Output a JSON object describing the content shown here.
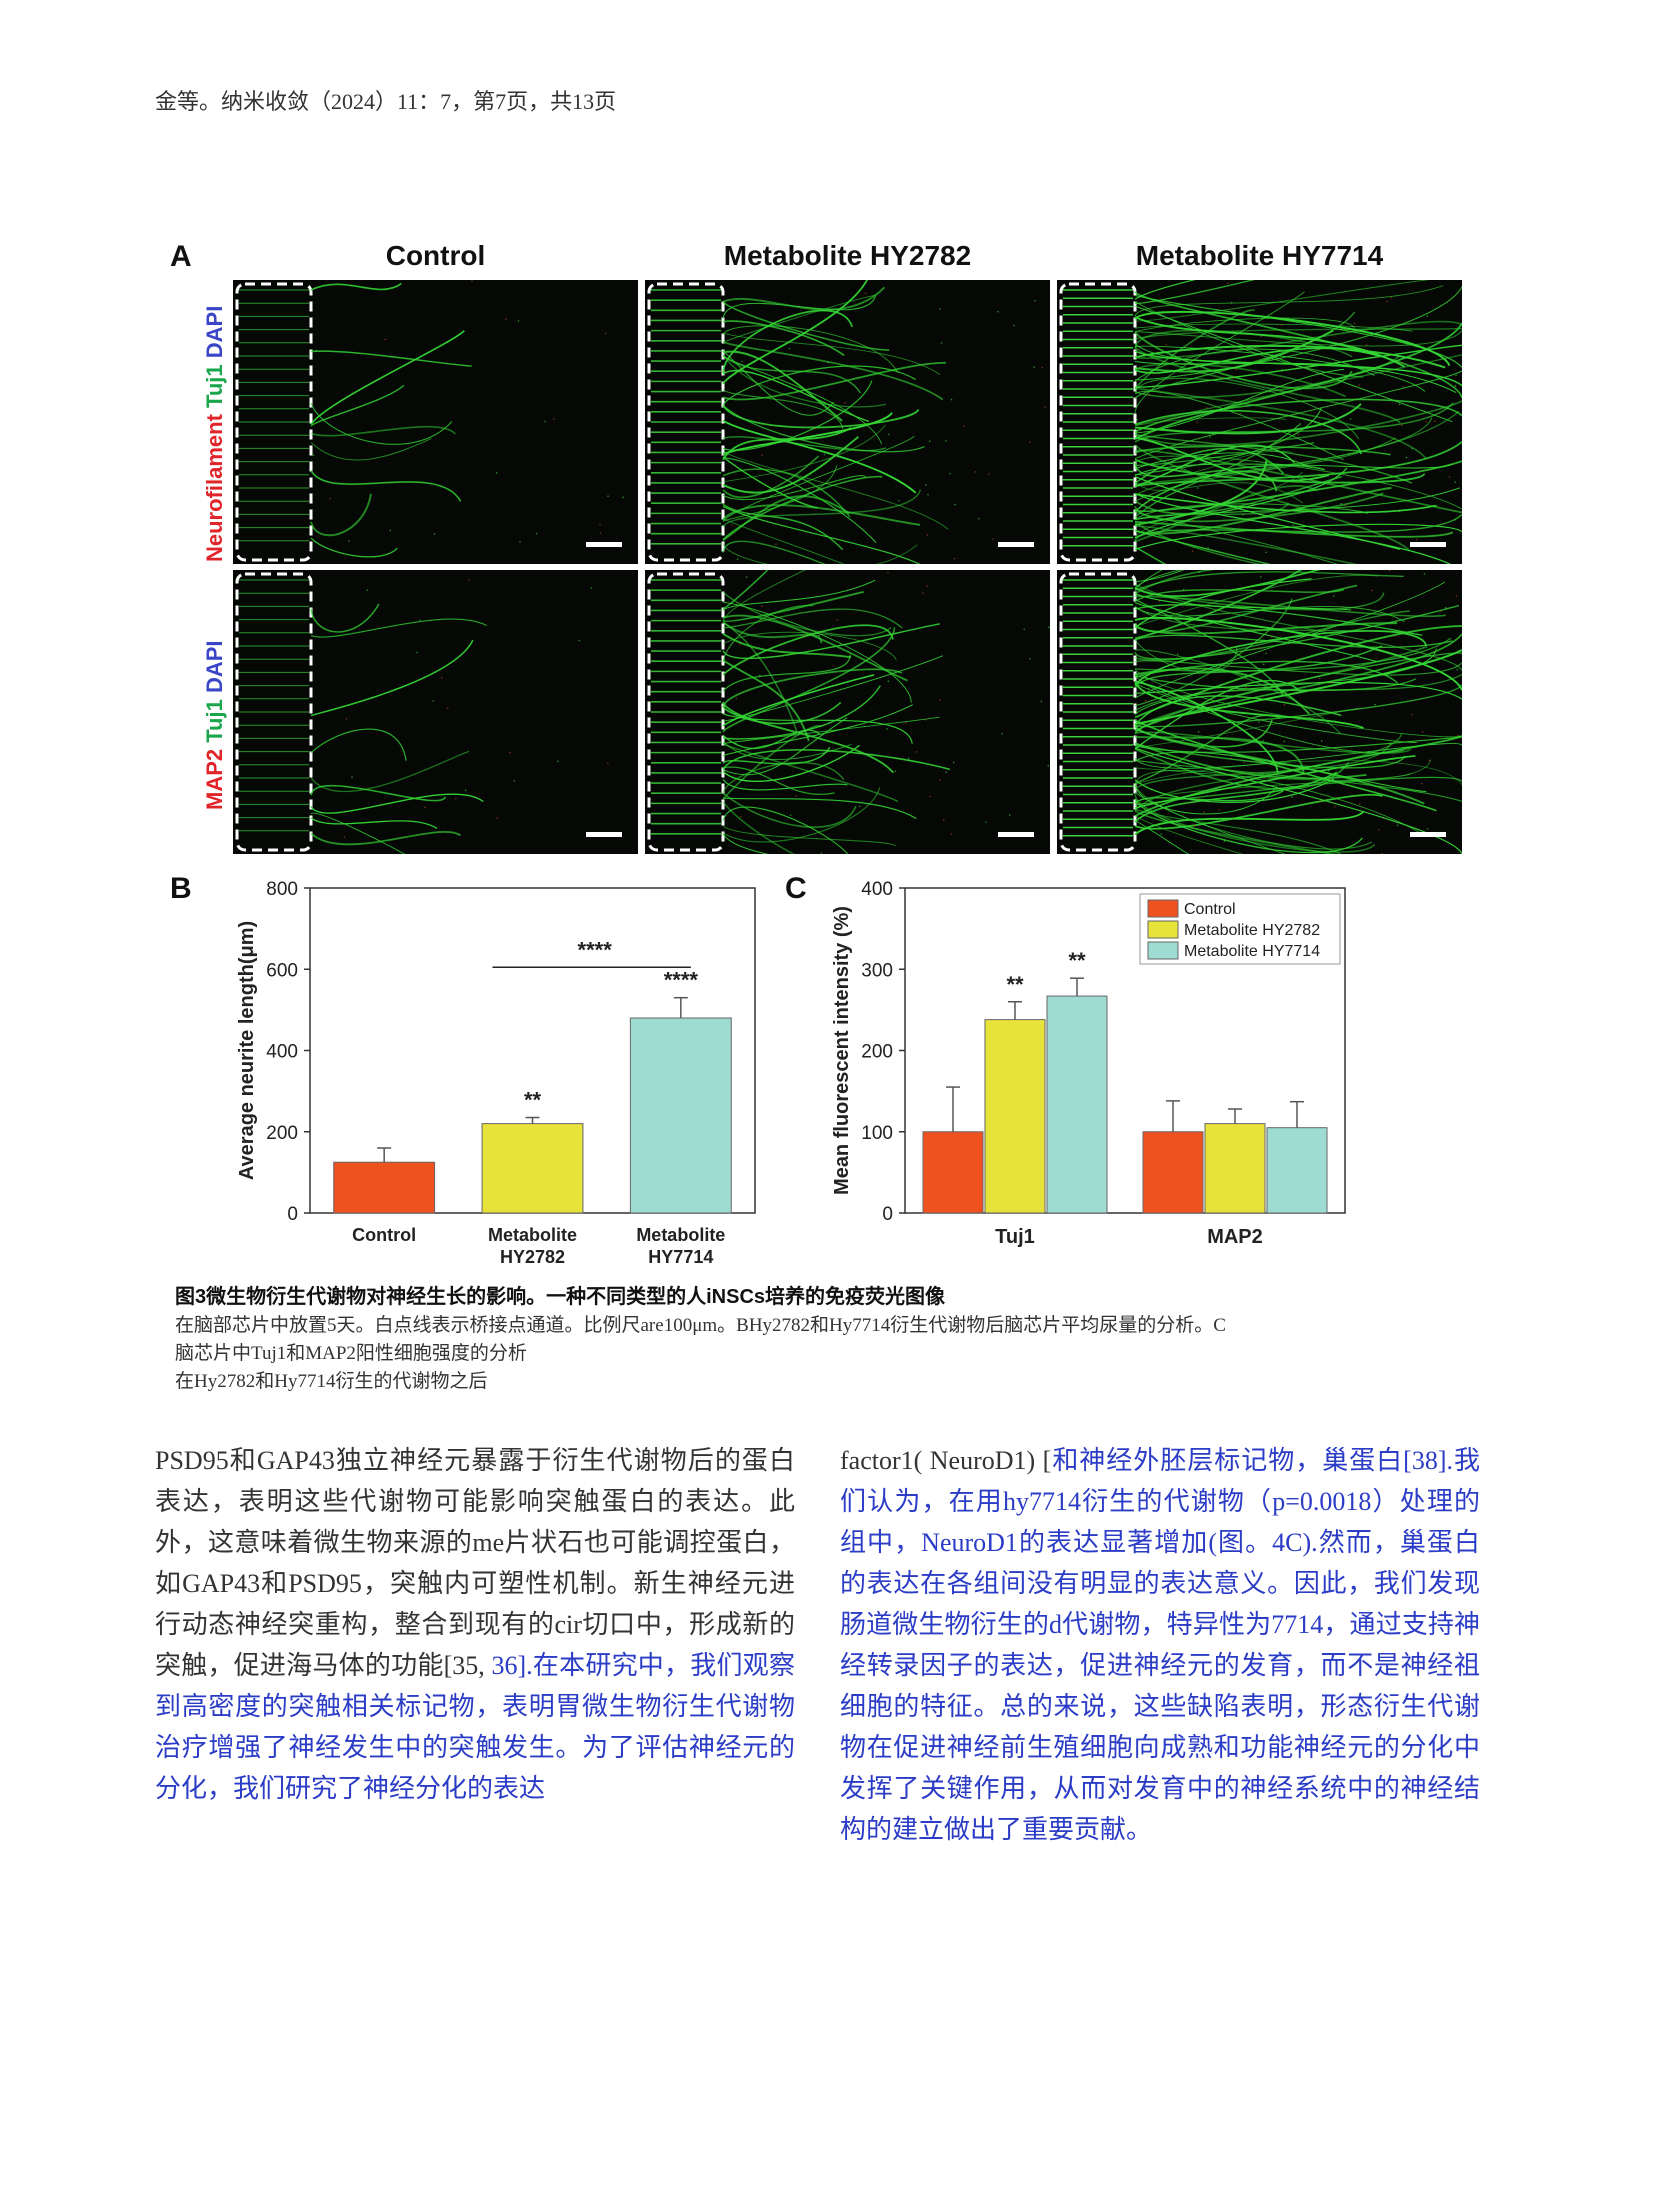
{
  "header": "金等。纳米收敛（2024）11：7，第7页，共13页",
  "figure": {
    "panel_a": {
      "letter": "A",
      "columns": [
        "Control",
        "Metabolite HY2782",
        "Metabolite HY7714"
      ],
      "row_labels": [
        {
          "parts": [
            {
              "text": "Neurofilament",
              "color": "#e0242a"
            },
            {
              "text": " Tuj1",
              "color": "#1aa64a"
            },
            {
              "text": " DAPI",
              "color": "#3a45c8"
            }
          ]
        },
        {
          "parts": [
            {
              "text": "MAP2",
              "color": "#e0242a"
            },
            {
              "text": " Tuj1",
              "color": "#1aa64a"
            },
            {
              "text": " DAPI",
              "color": "#3a45c8"
            }
          ]
        }
      ]
    },
    "panel_b": {
      "letter": "B"
    },
    "panel_c": {
      "letter": "C"
    }
  },
  "chart_data": [
    {
      "type": "bar",
      "panel": "B",
      "categories": [
        "Control",
        "Metabolite\nHY2782",
        "Metabolite\nHY7714"
      ],
      "values": [
        125,
        220,
        480
      ],
      "errors": [
        35,
        15,
        50
      ],
      "colors": [
        "#f0521f",
        "#e8e33a",
        "#9ddbd3"
      ],
      "ylabel": "Average neurite length(μm)",
      "ylim": [
        0,
        800
      ],
      "yticks": [
        0,
        200,
        400,
        600,
        800
      ],
      "significance": [
        {
          "label": "**",
          "category": 1
        },
        {
          "label": "****",
          "category": 2
        },
        {
          "label": "****",
          "from": 1,
          "to": 2,
          "bracket": true
        }
      ],
      "grid": false
    },
    {
      "type": "bar",
      "panel": "C",
      "categories": [
        "Tuj1",
        "MAP2"
      ],
      "series": [
        {
          "name": "Control",
          "values": [
            100,
            100
          ],
          "errors": [
            55,
            38
          ],
          "color": "#f0521f"
        },
        {
          "name": "Metabolite HY2782",
          "values": [
            238,
            110
          ],
          "errors": [
            22,
            18
          ],
          "color": "#e8e33a"
        },
        {
          "name": "Metabolite HY7714",
          "values": [
            267,
            105
          ],
          "errors": [
            22,
            32
          ],
          "color": "#9ddbd3"
        }
      ],
      "ylabel": "Mean fluorescent intensity (%)",
      "ylim": [
        0,
        400
      ],
      "yticks": [
        0,
        100,
        200,
        300,
        400
      ],
      "significance": [
        {
          "label": "**",
          "category": 0,
          "series": 1
        },
        {
          "label": "**",
          "category": 0,
          "series": 2
        }
      ],
      "legend": "top-right",
      "grid": false
    }
  ],
  "caption": {
    "title": "图3微生物衍生代谢物对神经生长的影响。一种不同类型的人iNSCs培养的免疫荧光图像",
    "lines": [
      "在脑部芯片中放置5天。白点线表示桥接点通道。比例尺are100μm。BHy2782和Hy7714衍生代谢物后脑芯片平均尿量的分析。C",
      "脑芯片中Tuj1和MAP2阳性细胞强度的分析",
      "在Hy2782和Hy7714衍生的代谢物之后"
    ]
  },
  "body": {
    "left": {
      "plain": "PSD95和GAP43独立神经元暴露于衍生代谢物后的蛋白表达，表明这些代谢物可能影响突触蛋白的表达。此外，这意味着微生物来源的me片状石也可能调控蛋白，如GAP43和PSD95，突触内可塑性机制。新生神经元进行动态神经突重构，整合到现有的cir切口中，形成新的突触，促进海马体的功能[35, ",
      "ref": "36]",
      "linked": ".在本研究中，我们观察到高密度的突触相关标记物，表明胃微生物衍生代谢物治疗增强了神经发生中的突触发生。为了评估神经元的分化，我们研究了神经分化的表达"
    },
    "right": {
      "plain": "factor1( NeuroD1) [",
      "linked": "和神经外胚层标记物，巢蛋白[38].我们认为，在用hy7714衍生的代谢物（p=0.0018）处理的组中，NeuroD1的表达显著增加(图。4C).然而，巢蛋白的表达在各组间没有明显的表达意义。因此，我们发现肠道微生物衍生的d代谢物，特异性为7714，通过支持神经转录因子的表达，促进神经元的发育，而不是神经祖细胞的特征。总的来说，这些缺陷表明，形态衍生代谢物在促进神经前生殖细胞向成熟和功能神经元的分化中发挥了关键作用，从而对发育中的神经系统中的神经结构的建立做出了重要贡献。"
    }
  }
}
